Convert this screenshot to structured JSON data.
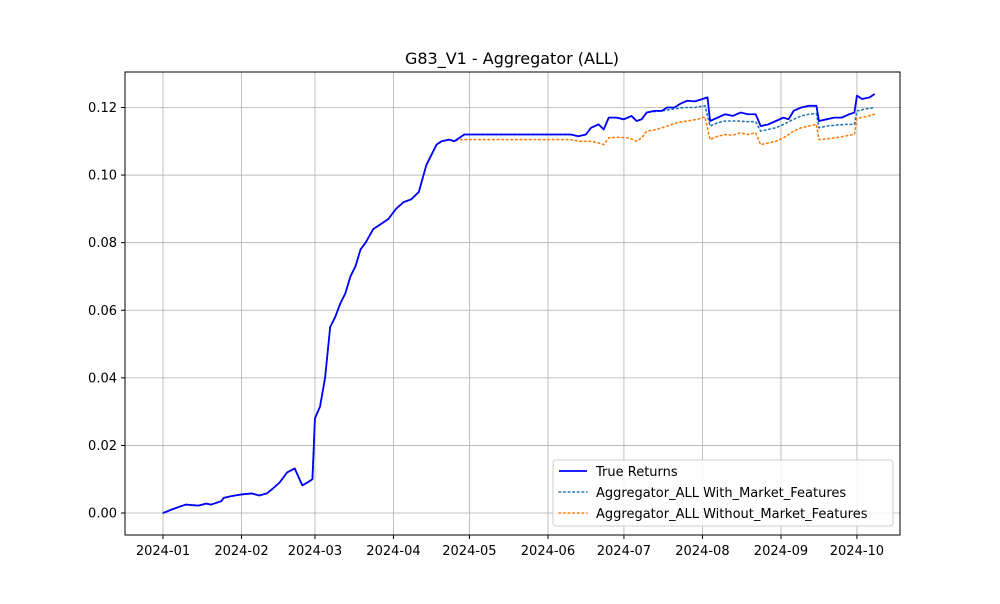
{
  "chart_data": {
    "type": "line",
    "title": "G83_V1 - Aggregator (ALL)",
    "xlabel": "",
    "ylabel": "",
    "x_ticks": [
      "2024-01",
      "2024-02",
      "2024-03",
      "2024-04",
      "2024-05",
      "2024-06",
      "2024-07",
      "2024-08",
      "2024-09",
      "2024-10"
    ],
    "y_ticks": [
      "0.00",
      "0.02",
      "0.04",
      "0.06",
      "0.08",
      "0.10",
      "0.12"
    ],
    "xlim": [
      "2023-12-17",
      "2024-10-18"
    ],
    "ylim": [
      -0.0065,
      0.1305
    ],
    "grid": true,
    "legend_position": "lower right",
    "series": [
      {
        "name": "True Returns",
        "color": "#0000ff",
        "style": "solid",
        "points": [
          [
            "2024-01-01",
            0.0
          ],
          [
            "2024-01-05",
            0.0012
          ],
          [
            "2024-01-10",
            0.0025
          ],
          [
            "2024-01-15",
            0.0022
          ],
          [
            "2024-01-18",
            0.0028
          ],
          [
            "2024-01-20",
            0.0025
          ],
          [
            "2024-01-24",
            0.0035
          ],
          [
            "2024-01-25",
            0.0045
          ],
          [
            "2024-01-28",
            0.005
          ],
          [
            "2024-02-01",
            0.0055
          ],
          [
            "2024-02-05",
            0.0058
          ],
          [
            "2024-02-08",
            0.0052
          ],
          [
            "2024-02-11",
            0.0058
          ],
          [
            "2024-02-13",
            0.007
          ],
          [
            "2024-02-16",
            0.009
          ],
          [
            "2024-02-19",
            0.012
          ],
          [
            "2024-02-22",
            0.0132
          ],
          [
            "2024-02-25",
            0.0082
          ],
          [
            "2024-02-27",
            0.009
          ],
          [
            "2024-02-29",
            0.01
          ],
          [
            "2024-03-01",
            0.028
          ],
          [
            "2024-03-03",
            0.0315
          ],
          [
            "2024-03-05",
            0.04
          ],
          [
            "2024-03-07",
            0.055
          ],
          [
            "2024-03-09",
            0.058
          ],
          [
            "2024-03-11",
            0.062
          ],
          [
            "2024-03-13",
            0.065
          ],
          [
            "2024-03-15",
            0.07
          ],
          [
            "2024-03-17",
            0.073
          ],
          [
            "2024-03-19",
            0.078
          ],
          [
            "2024-03-21",
            0.08
          ],
          [
            "2024-03-24",
            0.084
          ],
          [
            "2024-03-27",
            0.0855
          ],
          [
            "2024-03-30",
            0.087
          ],
          [
            "2024-04-02",
            0.09
          ],
          [
            "2024-04-05",
            0.092
          ],
          [
            "2024-04-08",
            0.0928
          ],
          [
            "2024-04-11",
            0.095
          ],
          [
            "2024-04-14",
            0.103
          ],
          [
            "2024-04-16",
            0.106
          ],
          [
            "2024-04-18",
            0.109
          ],
          [
            "2024-04-20",
            0.11
          ],
          [
            "2024-04-23",
            0.1105
          ],
          [
            "2024-04-25",
            0.11
          ],
          [
            "2024-04-27",
            0.111
          ],
          [
            "2024-04-29",
            0.112
          ],
          [
            "2024-05-15",
            0.112
          ],
          [
            "2024-06-01",
            0.112
          ],
          [
            "2024-06-10",
            0.112
          ],
          [
            "2024-06-13",
            0.1115
          ],
          [
            "2024-06-16",
            0.112
          ],
          [
            "2024-06-18",
            0.114
          ],
          [
            "2024-06-21",
            0.115
          ],
          [
            "2024-06-23",
            0.1135
          ],
          [
            "2024-06-25",
            0.117
          ],
          [
            "2024-06-28",
            0.117
          ],
          [
            "2024-07-01",
            0.1165
          ],
          [
            "2024-07-04",
            0.1175
          ],
          [
            "2024-07-06",
            0.116
          ],
          [
            "2024-07-08",
            0.1165
          ],
          [
            "2024-07-10",
            0.1185
          ],
          [
            "2024-07-13",
            0.119
          ],
          [
            "2024-07-16",
            0.119
          ],
          [
            "2024-07-18",
            0.12
          ],
          [
            "2024-07-21",
            0.12
          ],
          [
            "2024-07-23",
            0.121
          ],
          [
            "2024-07-26",
            0.122
          ],
          [
            "2024-07-29",
            0.1218
          ],
          [
            "2024-08-01",
            0.1225
          ],
          [
            "2024-08-03",
            0.123
          ],
          [
            "2024-08-04",
            0.116
          ],
          [
            "2024-08-07",
            0.117
          ],
          [
            "2024-08-10",
            0.118
          ],
          [
            "2024-08-13",
            0.1175
          ],
          [
            "2024-08-16",
            0.1185
          ],
          [
            "2024-08-19",
            0.118
          ],
          [
            "2024-08-22",
            0.118
          ],
          [
            "2024-08-24",
            0.1145
          ],
          [
            "2024-08-27",
            0.115
          ],
          [
            "2024-08-30",
            0.116
          ],
          [
            "2024-09-02",
            0.117
          ],
          [
            "2024-09-04",
            0.1165
          ],
          [
            "2024-09-06",
            0.119
          ],
          [
            "2024-09-09",
            0.12
          ],
          [
            "2024-09-12",
            0.1205
          ],
          [
            "2024-09-15",
            0.1205
          ],
          [
            "2024-09-16",
            0.116
          ],
          [
            "2024-09-19",
            0.1165
          ],
          [
            "2024-09-22",
            0.117
          ],
          [
            "2024-09-25",
            0.117
          ],
          [
            "2024-09-28",
            0.118
          ],
          [
            "2024-09-30",
            0.1185
          ],
          [
            "2024-10-01",
            0.1235
          ],
          [
            "2024-10-03",
            0.1225
          ],
          [
            "2024-10-06",
            0.123
          ],
          [
            "2024-10-08",
            0.124
          ]
        ]
      },
      {
        "name": "Aggregator_ALL With_Market_Features",
        "color": "#1f77b4",
        "style": "dotted",
        "points": [
          [
            "2024-01-01",
            0.0
          ],
          [
            "2024-01-05",
            0.0012
          ],
          [
            "2024-01-10",
            0.0025
          ],
          [
            "2024-01-15",
            0.0022
          ],
          [
            "2024-01-18",
            0.0028
          ],
          [
            "2024-01-20",
            0.0025
          ],
          [
            "2024-01-24",
            0.0035
          ],
          [
            "2024-01-25",
            0.0045
          ],
          [
            "2024-01-28",
            0.005
          ],
          [
            "2024-02-01",
            0.0055
          ],
          [
            "2024-02-05",
            0.0058
          ],
          [
            "2024-02-08",
            0.0052
          ],
          [
            "2024-02-11",
            0.0058
          ],
          [
            "2024-02-13",
            0.007
          ],
          [
            "2024-02-16",
            0.009
          ],
          [
            "2024-02-19",
            0.012
          ],
          [
            "2024-02-22",
            0.0132
          ],
          [
            "2024-02-25",
            0.0082
          ],
          [
            "2024-02-27",
            0.009
          ],
          [
            "2024-02-29",
            0.01
          ],
          [
            "2024-03-01",
            0.028
          ],
          [
            "2024-03-03",
            0.0315
          ],
          [
            "2024-03-05",
            0.04
          ],
          [
            "2024-03-07",
            0.055
          ],
          [
            "2024-03-09",
            0.058
          ],
          [
            "2024-03-11",
            0.062
          ],
          [
            "2024-03-13",
            0.065
          ],
          [
            "2024-03-15",
            0.07
          ],
          [
            "2024-03-17",
            0.073
          ],
          [
            "2024-03-19",
            0.078
          ],
          [
            "2024-03-21",
            0.08
          ],
          [
            "2024-03-24",
            0.084
          ],
          [
            "2024-03-27",
            0.0855
          ],
          [
            "2024-03-30",
            0.087
          ],
          [
            "2024-04-02",
            0.09
          ],
          [
            "2024-04-05",
            0.092
          ],
          [
            "2024-04-08",
            0.0928
          ],
          [
            "2024-04-11",
            0.095
          ],
          [
            "2024-04-14",
            0.103
          ],
          [
            "2024-04-16",
            0.106
          ],
          [
            "2024-04-18",
            0.109
          ],
          [
            "2024-04-20",
            0.11
          ],
          [
            "2024-04-23",
            0.1105
          ],
          [
            "2024-04-25",
            0.11
          ],
          [
            "2024-04-27",
            0.111
          ],
          [
            "2024-04-29",
            0.112
          ],
          [
            "2024-05-15",
            0.112
          ],
          [
            "2024-06-01",
            0.112
          ],
          [
            "2024-06-10",
            0.112
          ],
          [
            "2024-06-13",
            0.1115
          ],
          [
            "2024-06-16",
            0.112
          ],
          [
            "2024-06-18",
            0.114
          ],
          [
            "2024-06-21",
            0.115
          ],
          [
            "2024-06-23",
            0.1135
          ],
          [
            "2024-06-25",
            0.117
          ],
          [
            "2024-06-28",
            0.117
          ],
          [
            "2024-07-01",
            0.1165
          ],
          [
            "2024-07-04",
            0.1175
          ],
          [
            "2024-07-06",
            0.116
          ],
          [
            "2024-07-08",
            0.1165
          ],
          [
            "2024-07-10",
            0.1185
          ],
          [
            "2024-07-13",
            0.1188
          ],
          [
            "2024-07-16",
            0.119
          ],
          [
            "2024-07-20",
            0.1195
          ],
          [
            "2024-07-25",
            0.12
          ],
          [
            "2024-07-29",
            0.12
          ],
          [
            "2024-08-02",
            0.1205
          ],
          [
            "2024-08-04",
            0.1145
          ],
          [
            "2024-08-07",
            0.1155
          ],
          [
            "2024-08-10",
            0.116
          ],
          [
            "2024-08-15",
            0.116
          ],
          [
            "2024-08-19",
            0.1158
          ],
          [
            "2024-08-22",
            0.1158
          ],
          [
            "2024-08-24",
            0.113
          ],
          [
            "2024-08-27",
            0.1135
          ],
          [
            "2024-08-30",
            0.114
          ],
          [
            "2024-09-02",
            0.115
          ],
          [
            "2024-09-06",
            0.1165
          ],
          [
            "2024-09-09",
            0.1175
          ],
          [
            "2024-09-12",
            0.118
          ],
          [
            "2024-09-15",
            0.1182
          ],
          [
            "2024-09-16",
            0.114
          ],
          [
            "2024-09-19",
            0.1145
          ],
          [
            "2024-09-23",
            0.1148
          ],
          [
            "2024-09-27",
            0.115
          ],
          [
            "2024-09-30",
            0.115
          ],
          [
            "2024-10-01",
            0.119
          ],
          [
            "2024-10-04",
            0.1195
          ],
          [
            "2024-10-08",
            0.12
          ]
        ]
      },
      {
        "name": "Aggregator_ALL Without_Market_Features",
        "color": "#ff7f0e",
        "style": "dotted",
        "points": [
          [
            "2024-01-01",
            0.0
          ],
          [
            "2024-01-05",
            0.0012
          ],
          [
            "2024-01-10",
            0.0025
          ],
          [
            "2024-01-15",
            0.0022
          ],
          [
            "2024-01-18",
            0.0028
          ],
          [
            "2024-01-20",
            0.0025
          ],
          [
            "2024-01-24",
            0.0035
          ],
          [
            "2024-01-25",
            0.0045
          ],
          [
            "2024-01-28",
            0.005
          ],
          [
            "2024-02-01",
            0.0055
          ],
          [
            "2024-02-05",
            0.0058
          ],
          [
            "2024-02-08",
            0.0052
          ],
          [
            "2024-02-11",
            0.0058
          ],
          [
            "2024-02-13",
            0.007
          ],
          [
            "2024-02-16",
            0.009
          ],
          [
            "2024-02-19",
            0.012
          ],
          [
            "2024-02-22",
            0.0132
          ],
          [
            "2024-02-25",
            0.0082
          ],
          [
            "2024-02-27",
            0.009
          ],
          [
            "2024-02-29",
            0.01
          ],
          [
            "2024-03-01",
            0.028
          ],
          [
            "2024-03-03",
            0.0315
          ],
          [
            "2024-03-05",
            0.04
          ],
          [
            "2024-03-07",
            0.055
          ],
          [
            "2024-03-09",
            0.058
          ],
          [
            "2024-03-11",
            0.062
          ],
          [
            "2024-03-13",
            0.065
          ],
          [
            "2024-03-15",
            0.07
          ],
          [
            "2024-03-17",
            0.073
          ],
          [
            "2024-03-19",
            0.078
          ],
          [
            "2024-03-21",
            0.08
          ],
          [
            "2024-03-24",
            0.084
          ],
          [
            "2024-03-27",
            0.0855
          ],
          [
            "2024-03-30",
            0.087
          ],
          [
            "2024-04-02",
            0.09
          ],
          [
            "2024-04-05",
            0.092
          ],
          [
            "2024-04-08",
            0.0928
          ],
          [
            "2024-04-11",
            0.095
          ],
          [
            "2024-04-14",
            0.103
          ],
          [
            "2024-04-16",
            0.106
          ],
          [
            "2024-04-18",
            0.109
          ],
          [
            "2024-04-20",
            0.11
          ],
          [
            "2024-04-23",
            0.1105
          ],
          [
            "2024-04-25",
            0.11
          ],
          [
            "2024-04-27",
            0.1105
          ],
          [
            "2024-04-29",
            0.1105
          ],
          [
            "2024-05-15",
            0.1105
          ],
          [
            "2024-06-01",
            0.1105
          ],
          [
            "2024-06-10",
            0.1105
          ],
          [
            "2024-06-13",
            0.11
          ],
          [
            "2024-06-18",
            0.11
          ],
          [
            "2024-06-21",
            0.1095
          ],
          [
            "2024-06-23",
            0.109
          ],
          [
            "2024-06-25",
            0.111
          ],
          [
            "2024-06-28",
            0.1112
          ],
          [
            "2024-07-03",
            0.111
          ],
          [
            "2024-07-06",
            0.11
          ],
          [
            "2024-07-08",
            0.111
          ],
          [
            "2024-07-10",
            0.113
          ],
          [
            "2024-07-14",
            0.1135
          ],
          [
            "2024-07-18",
            0.1145
          ],
          [
            "2024-07-22",
            0.1155
          ],
          [
            "2024-07-26",
            0.116
          ],
          [
            "2024-07-30",
            0.1165
          ],
          [
            "2024-08-02",
            0.1172
          ],
          [
            "2024-08-04",
            0.1105
          ],
          [
            "2024-08-07",
            0.1115
          ],
          [
            "2024-08-10",
            0.112
          ],
          [
            "2024-08-13",
            0.1118
          ],
          [
            "2024-08-16",
            0.1125
          ],
          [
            "2024-08-19",
            0.112
          ],
          [
            "2024-08-22",
            0.1125
          ],
          [
            "2024-08-24",
            0.109
          ],
          [
            "2024-08-27",
            0.1095
          ],
          [
            "2024-08-30",
            0.11
          ],
          [
            "2024-09-02",
            0.111
          ],
          [
            "2024-09-06",
            0.113
          ],
          [
            "2024-09-09",
            0.114
          ],
          [
            "2024-09-12",
            0.1145
          ],
          [
            "2024-09-15",
            0.115
          ],
          [
            "2024-09-16",
            0.1105
          ],
          [
            "2024-09-20",
            0.1108
          ],
          [
            "2024-09-24",
            0.1112
          ],
          [
            "2024-09-28",
            0.1118
          ],
          [
            "2024-09-30",
            0.112
          ],
          [
            "2024-10-01",
            0.1168
          ],
          [
            "2024-10-04",
            0.1172
          ],
          [
            "2024-10-08",
            0.118
          ]
        ]
      }
    ]
  }
}
